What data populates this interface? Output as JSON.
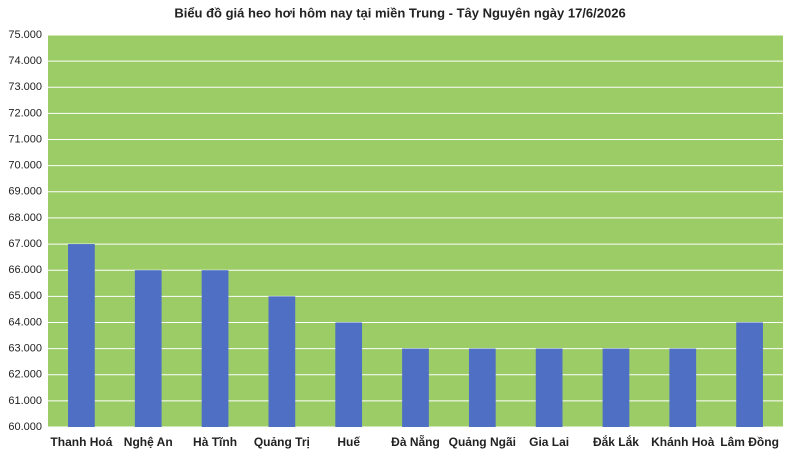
{
  "chart_data": {
    "type": "bar",
    "title": "Biểu đồ giá heo hơi hôm nay tại miền Trung - Tây Nguyên ngày 17/6/2026",
    "categories": [
      "Thanh Hoá",
      "Nghệ An",
      "Hà Tĩnh",
      "Quảng Trị",
      "Huế",
      "Đà Nẵng",
      "Quảng Ngãi",
      "Gia Lai",
      "Đắk Lắk",
      "Khánh Hoà",
      "Lâm Đồng"
    ],
    "values": [
      67000,
      66000,
      66000,
      65000,
      64000,
      63000,
      63000,
      63000,
      63000,
      63000,
      64000
    ],
    "color": "#4f6fc4",
    "plot_background": "#9ccc65",
    "ylim": [
      60000,
      75000
    ],
    "yticks": [
      {
        "value": 60000,
        "label": "60.000"
      },
      {
        "value": 61000,
        "label": "61.000"
      },
      {
        "value": 62000,
        "label": "62.000"
      },
      {
        "value": 63000,
        "label": "63.000"
      },
      {
        "value": 64000,
        "label": "64.000"
      },
      {
        "value": 65000,
        "label": "65.000"
      },
      {
        "value": 66000,
        "label": "66.000"
      },
      {
        "value": 67000,
        "label": "67.000"
      },
      {
        "value": 68000,
        "label": "68.000"
      },
      {
        "value": 69000,
        "label": "69.000"
      },
      {
        "value": 70000,
        "label": "70.000"
      },
      {
        "value": 71000,
        "label": "71.000"
      },
      {
        "value": 72000,
        "label": "72.000"
      },
      {
        "value": 73000,
        "label": "73.000"
      },
      {
        "value": 74000,
        "label": "74.000"
      },
      {
        "value": 75000,
        "label": "75.000"
      }
    ],
    "grid": true
  }
}
